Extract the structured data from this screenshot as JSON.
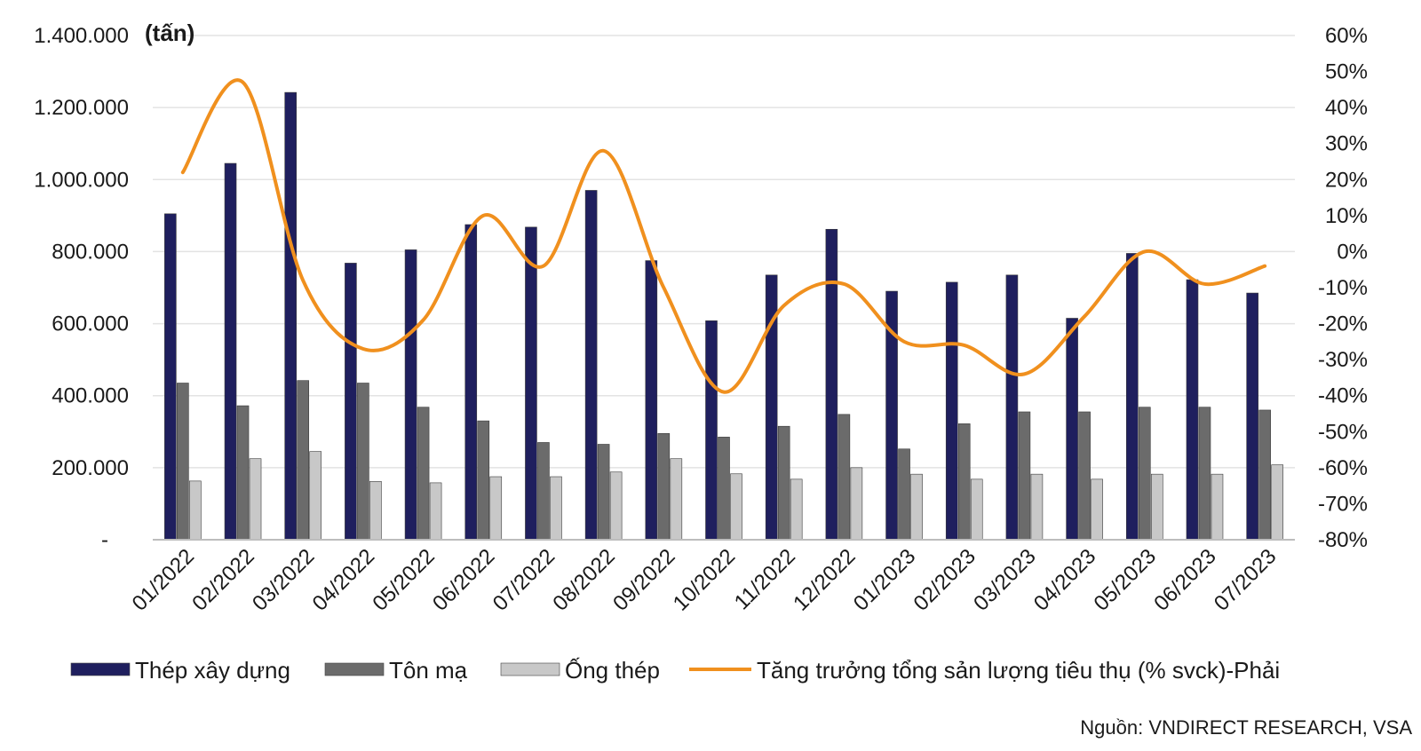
{
  "chart_data": {
    "type": "bar",
    "unit_label": "(tấn)",
    "categories": [
      "01/2022",
      "02/2022",
      "03/2022",
      "04/2022",
      "05/2022",
      "06/2022",
      "07/2022",
      "08/2022",
      "09/2022",
      "10/2022",
      "11/2022",
      "12/2022",
      "01/2023",
      "02/2023",
      "03/2023",
      "04/2023",
      "05/2023",
      "06/2023",
      "07/2023"
    ],
    "series": [
      {
        "name": "Thép xây dựng",
        "kind": "bar",
        "axis": "left",
        "color": "#1f1f5e",
        "values": [
          905000,
          1045000,
          1242000,
          768000,
          805000,
          875000,
          868000,
          970000,
          775000,
          608000,
          735000,
          862000,
          690000,
          715000,
          735000,
          615000,
          795000,
          722000,
          685000
        ]
      },
      {
        "name": "Tôn mạ",
        "kind": "bar",
        "axis": "left",
        "color": "#6b6b6b",
        "values": [
          435000,
          372000,
          442000,
          435000,
          368000,
          330000,
          270000,
          265000,
          295000,
          285000,
          315000,
          348000,
          252000,
          322000,
          355000,
          355000,
          368000,
          368000,
          360000
        ]
      },
      {
        "name": "Ống thép",
        "kind": "bar",
        "axis": "left",
        "color": "#c8c8c8",
        "values": [
          163000,
          225000,
          245000,
          162000,
          158000,
          175000,
          175000,
          188000,
          225000,
          183000,
          168000,
          200000,
          182000,
          168000,
          182000,
          168000,
          182000,
          182000,
          208000
        ]
      },
      {
        "name": "Tăng trưởng tổng sản lượng tiêu thụ (% svck)-Phải",
        "kind": "line",
        "axis": "right",
        "color": "#f0901e",
        "values": [
          22,
          47,
          -8,
          -27,
          -19,
          10,
          -4,
          28,
          -10,
          -39,
          -15,
          -9,
          -25,
          -26,
          -34,
          -18,
          0,
          -9,
          -4
        ]
      }
    ],
    "left_axis": {
      "ticks": [
        "1.400.000",
        "1.200.000",
        "1.000.000",
        "800.000",
        "600.000",
        "400.000",
        "200.000",
        "-"
      ],
      "min": 0,
      "max": 1400000
    },
    "right_axis": {
      "ticks": [
        "60%",
        "50%",
        "40%",
        "30%",
        "20%",
        "10%",
        "0%",
        "-10%",
        "-20%",
        "-30%",
        "-40%",
        "-50%",
        "-60%",
        "-70%",
        "-80%"
      ],
      "min": -80,
      "max": 60
    },
    "grid": true,
    "legend_position": "bottom",
    "source": "Nguồn: VNDIRECT RESEARCH, VSA"
  }
}
